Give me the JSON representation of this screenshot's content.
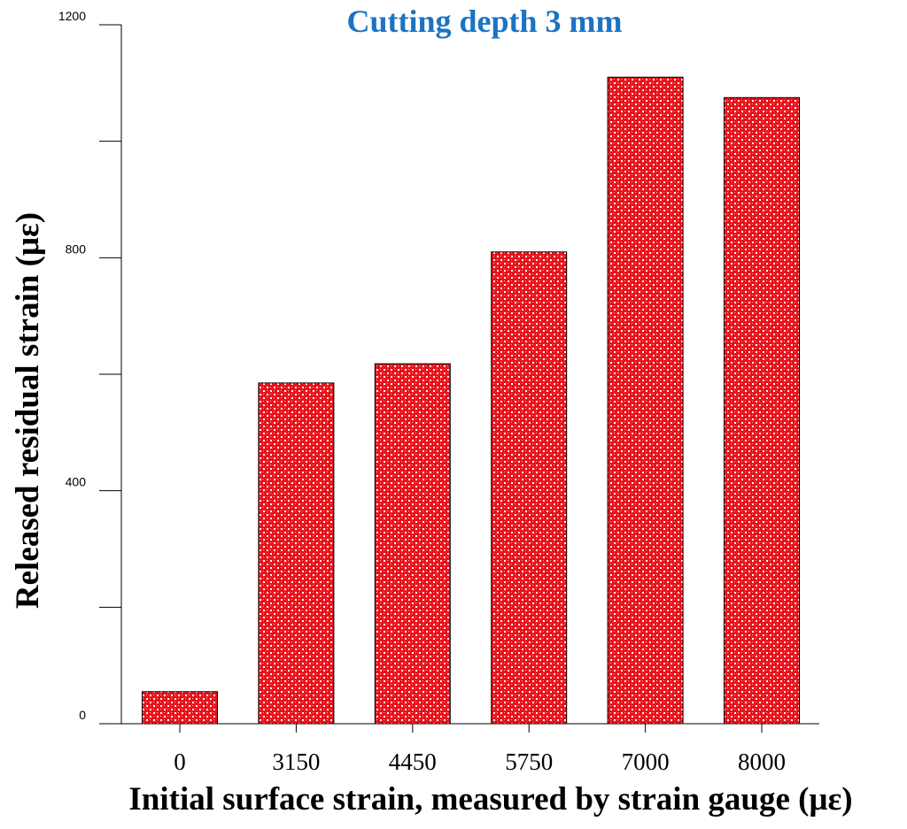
{
  "chart_data": {
    "type": "bar",
    "title": "Cutting depth 3 mm",
    "xlabel": "Initial surface strain, measured by strain gauge (με)",
    "ylabel": "Released residual strain (με)",
    "categories": [
      "0",
      "3150",
      "4450",
      "5750",
      "7000",
      "8000"
    ],
    "values": [
      55,
      585,
      618,
      810,
      1110,
      1075
    ],
    "ylim": [
      0,
      1200
    ],
    "yticks_labeled": [
      0,
      400,
      800,
      1200
    ],
    "yticks_minor": [
      200,
      600,
      1000
    ],
    "grid": false,
    "legend": null
  },
  "colors": {
    "bar_fill": "#e8141c",
    "bar_pattern": "#ffffff",
    "title": "#1a73c4",
    "axis": "#000000"
  }
}
